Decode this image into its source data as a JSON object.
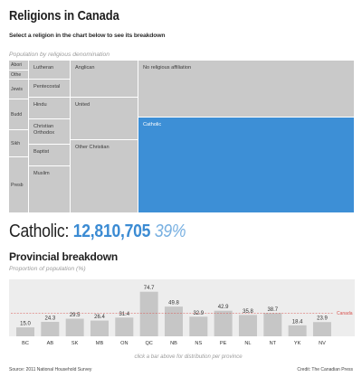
{
  "header": {
    "title": "Religions in Canada",
    "subtitle": "Select a religion in the chart below to see its breakdown"
  },
  "treemap": {
    "caption": "Population by religious denomination",
    "cells": [
      {
        "label": "Abori",
        "selected": false
      },
      {
        "label": "Othe",
        "selected": false
      },
      {
        "label": "Jewis",
        "selected": false
      },
      {
        "label": "Budd",
        "selected": false
      },
      {
        "label": "Sikh",
        "selected": false
      },
      {
        "label": "Presb",
        "selected": false
      },
      {
        "label": "Lutheran",
        "selected": false
      },
      {
        "label": "Pentecostal",
        "selected": false
      },
      {
        "label": "Hindu",
        "selected": false
      },
      {
        "label": "Christian Orthodox",
        "selected": false
      },
      {
        "label": "Baptist",
        "selected": false
      },
      {
        "label": "Muslim",
        "selected": false
      },
      {
        "label": "Anglican",
        "selected": false
      },
      {
        "label": "United",
        "selected": false
      },
      {
        "label": "Other Christian",
        "selected": false
      },
      {
        "label": "No religious affiliation",
        "selected": false
      },
      {
        "label": "Catholic",
        "selected": true
      }
    ]
  },
  "selection": {
    "label": "Catholic:",
    "count": "12,810,705",
    "percent": "39%"
  },
  "chart_data": {
    "type": "bar",
    "title": "Provincial breakdown",
    "subtitle": "Proportion of population (%)",
    "xlabel": "",
    "ylabel": "",
    "categories": [
      "BC",
      "AB",
      "SK",
      "MB",
      "ON",
      "QC",
      "NB",
      "NS",
      "PE",
      "NL",
      "NT",
      "YK",
      "NV"
    ],
    "values": [
      15.0,
      24.3,
      29.5,
      26.4,
      31.4,
      74.7,
      49.8,
      32.9,
      42.9,
      35.8,
      38.7,
      18.4,
      23.9
    ],
    "reference_line": {
      "label": "Canada",
      "value": 39
    },
    "data_labels": true,
    "grid": false
  },
  "chart_hint": "click a bar above for distribution per province",
  "footer": {
    "source": "Source: 2011 National Household Survey",
    "credit": "Credit: The Canadian Press"
  },
  "colors": {
    "treemap_cell": "#c9c9c9",
    "selected": "#3d8fd6",
    "count_text": "#3b8bd3",
    "percent_text": "#78b0e1",
    "bar": "#c6c6c6",
    "chart_panel": "#ededed",
    "reference_line": "#d9534f"
  }
}
